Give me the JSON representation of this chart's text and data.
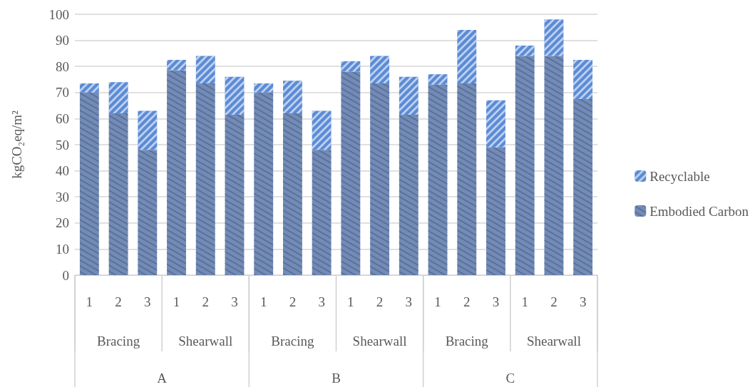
{
  "chart_data": {
    "type": "bar",
    "stacked": true,
    "ylabel": "kgCO₂eq/m²",
    "categories": [
      "1",
      "2",
      "3",
      "1",
      "2",
      "3",
      "1",
      "2",
      "3",
      "1",
      "2",
      "3",
      "1",
      "2",
      "3",
      "1",
      "2",
      "3"
    ],
    "series": [
      {
        "name": "Embodied Carbon",
        "color": "#6a85b4",
        "values": [
          70,
          62,
          48,
          78.5,
          73.5,
          61.5,
          70,
          62,
          48,
          78,
          73.5,
          61.5,
          73,
          73.5,
          49,
          84,
          84,
          67.5
        ]
      },
      {
        "name": "Recyclable",
        "color": "#5b8bd6",
        "values": [
          3.5,
          12,
          15,
          4,
          10.5,
          14.5,
          3.5,
          12.5,
          15,
          4,
          10.5,
          14.5,
          4,
          20.5,
          18,
          4,
          14,
          15
        ]
      }
    ],
    "annotations": [
      "Bracing",
      "Shearwall",
      "Bracing",
      "Shearwall",
      "Bracing",
      "Shearwall",
      "A",
      "B",
      "C"
    ],
    "ylim": [
      0,
      100
    ],
    "yticks": [
      0,
      10,
      20,
      30,
      40,
      50,
      60,
      70,
      80,
      90,
      100
    ],
    "grid": "y",
    "legend": "right"
  }
}
